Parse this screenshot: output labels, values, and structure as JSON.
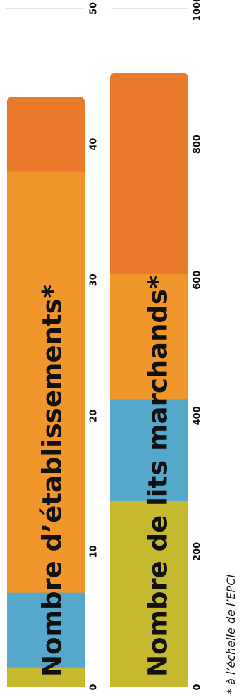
{
  "chart_data": [
    {
      "type": "bar",
      "stacked": true,
      "title": "Nombre d’établissements*",
      "axis_ticks": [
        "0",
        "10",
        "20",
        "30",
        "40",
        "50"
      ],
      "xlim": [
        0,
        50
      ],
      "grid": false,
      "segments": [
        {
          "value": 1.5,
          "color": "#c6b82f"
        },
        {
          "value": 5.5,
          "color": "#55a8c9"
        },
        {
          "value": 31,
          "color": "#f0962a"
        },
        {
          "value": 5.5,
          "color": "#e87a2a"
        }
      ]
    },
    {
      "type": "bar",
      "stacked": true,
      "title": "Nombre de lits marchands*",
      "axis_ticks": [
        "0",
        "200",
        "400",
        "600",
        "800",
        "1000"
      ],
      "xlim": [
        0,
        1000
      ],
      "grid": false,
      "segments": [
        {
          "value": 275,
          "color": "#c6b82f"
        },
        {
          "value": 150,
          "color": "#55a8c9"
        },
        {
          "value": 185,
          "color": "#f0962a"
        },
        {
          "value": 295,
          "color": "#e87a2a"
        }
      ]
    }
  ],
  "footnote": "* à l’échelle de l’EPCI"
}
